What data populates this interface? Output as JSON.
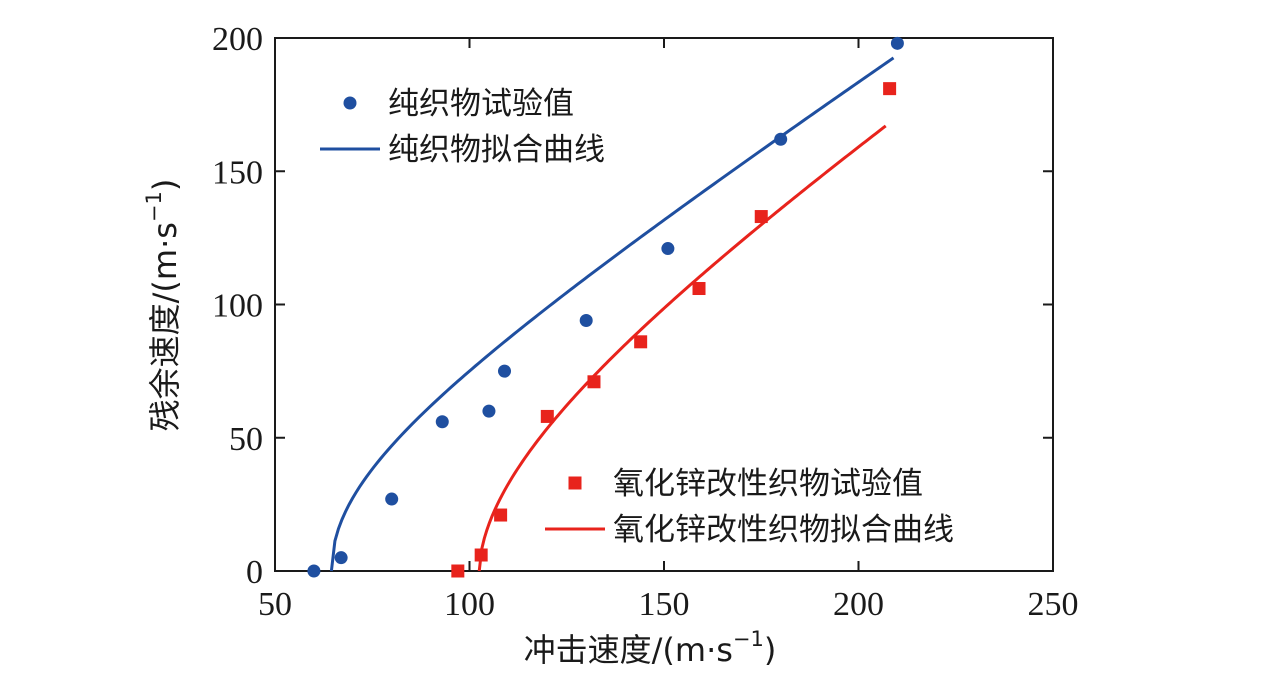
{
  "chart_data": {
    "type": "scatter",
    "xlabel": "冲击速度/(m·s",
    "ylabel": "残余速度/(m·s",
    "unit_sup": "−1",
    "unit_close": ")",
    "xlim": [
      50,
      250
    ],
    "ylim": [
      0,
      200
    ],
    "xticks": [
      "50",
      "100",
      "150",
      "200",
      "250"
    ],
    "yticks": [
      "0",
      "50",
      "100",
      "150",
      "200"
    ],
    "grid": false,
    "series": [
      {
        "name": "纯织物试验值",
        "kind": "points",
        "marker": "circle",
        "color": "#1f4fa0",
        "x": [
          60,
          67,
          80,
          93,
          105,
          109,
          130,
          151,
          180,
          210
        ],
        "y": [
          0,
          5,
          27,
          56,
          60,
          75,
          94,
          121,
          162,
          198
        ]
      },
      {
        "name": "纯织物拟合曲线",
        "kind": "fit",
        "color": "#1f4fa0",
        "fit": {
          "a": 0.963,
          "n": 2.07,
          "v0": 64.5,
          "x_end": 209
        }
      },
      {
        "name": "氧化锌改性织物试验值",
        "kind": "points",
        "marker": "square",
        "color": "#e8231c",
        "x": [
          97,
          103,
          108,
          120,
          132,
          144,
          159,
          175,
          208
        ],
        "y": [
          0,
          6,
          21,
          58,
          71,
          86,
          106,
          133,
          181
        ]
      },
      {
        "name": "氧化锌改性织物拟合曲线",
        "kind": "fit",
        "color": "#e8231c",
        "fit": {
          "a": 0.97,
          "n": 1.8,
          "v0": 102.5,
          "x_end": 207
        }
      }
    ],
    "legends": [
      {
        "placement": "top-left",
        "series": [
          0,
          1
        ]
      },
      {
        "placement": "bottom-right",
        "series": [
          2,
          3
        ]
      }
    ]
  }
}
